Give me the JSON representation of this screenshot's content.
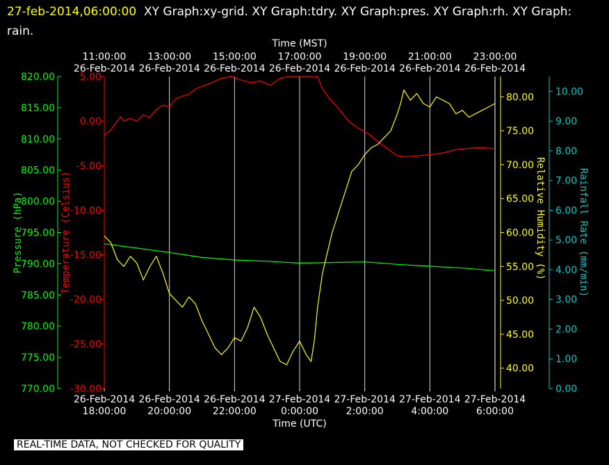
{
  "header": {
    "timestamp": "27-feb-2014,06:00:00",
    "graphs_text": "XY Graph:xy-grid.  XY Graph:tdry.  XY Graph:pres.  XY Graph:rh.  XY Graph: rain."
  },
  "notice": "REAL-TIME DATA, NOT CHECKED FOR QUALITY",
  "colors": {
    "temperature": "#ff0000",
    "pressure": "#00ff00",
    "humidity": "#ffff00",
    "rain": "#00cccc",
    "grid": "#ffffff"
  },
  "chart_data": {
    "type": "line",
    "top_axis": {
      "label": "Time (MST)",
      "ticks": [
        {
          "time": "11:00:00",
          "date": "26-Feb-2014"
        },
        {
          "time": "13:00:00",
          "date": "26-Feb-2014"
        },
        {
          "time": "15:00:00",
          "date": "26-Feb-2014"
        },
        {
          "time": "17:00:00",
          "date": "26-Feb-2014"
        },
        {
          "time": "19:00:00",
          "date": "26-Feb-2014"
        },
        {
          "time": "21:00:00",
          "date": "26-Feb-2014"
        },
        {
          "time": "23:00:00",
          "date": "26-Feb-2014"
        }
      ]
    },
    "bottom_axis": {
      "label": "Time (UTC)",
      "ticks": [
        {
          "date": "26-Feb-2014",
          "time": "18:00:00"
        },
        {
          "date": "26-Feb-2014",
          "time": "20:00:00"
        },
        {
          "date": "26-Feb-2014",
          "time": "22:00:00"
        },
        {
          "date": "27-Feb-2014",
          "time": "0:00:00"
        },
        {
          "date": "27-Feb-2014",
          "time": "2:00:00"
        },
        {
          "date": "27-Feb-2014",
          "time": "4:00:00"
        },
        {
          "date": "27-Feb-2014",
          "time": "6:00:00"
        }
      ]
    },
    "x_range_utc_hours": [
      18,
      30
    ],
    "axes": {
      "pressure": {
        "label": "Pressure (hPa)",
        "range": [
          770,
          820
        ],
        "ticks": [
          "770.00",
          "775.00",
          "780.00",
          "785.00",
          "790.00",
          "795.00",
          "800.00",
          "805.00",
          "810.00",
          "815.00",
          "820.00"
        ]
      },
      "temperature": {
        "label": "Temperature (Celsius)",
        "range": [
          -30,
          5
        ],
        "ticks": [
          "-30.00",
          "-25.00",
          "-20.00",
          "-15.00",
          "-10.00",
          "-5.00",
          "0.00",
          "5.00"
        ]
      },
      "humidity": {
        "label": "Relative Humidity (%)",
        "range": [
          37,
          83
        ],
        "ticks": [
          "40.00",
          "45.00",
          "50.00",
          "55.00",
          "60.00",
          "65.00",
          "70.00",
          "75.00",
          "80.00"
        ]
      },
      "rain": {
        "label": "Rainfall Rate (mm/min)",
        "range": [
          0,
          10.5
        ],
        "ticks": [
          "0.00",
          "1.00",
          "2.00",
          "3.00",
          "4.00",
          "5.00",
          "6.00",
          "7.00",
          "8.00",
          "9.00",
          "10.00"
        ]
      }
    },
    "series": [
      {
        "name": "tdry",
        "axis": "temperature",
        "x": [
          18.0,
          18.2,
          18.4,
          18.5,
          18.6,
          18.8,
          19.0,
          19.2,
          19.4,
          19.6,
          19.8,
          20.0,
          20.2,
          20.4,
          20.6,
          20.8,
          21.0,
          21.3,
          21.6,
          21.9,
          22.2,
          22.5,
          22.8,
          23.1,
          23.4,
          23.7,
          24.0,
          24.3,
          24.45,
          24.55,
          24.7,
          24.9,
          25.2,
          25.5,
          25.8,
          26.1,
          26.4,
          26.7,
          27.0,
          27.3,
          27.6,
          27.9,
          28.2,
          28.5,
          28.8,
          29.1,
          29.4,
          29.7,
          30.0
        ],
        "y": [
          -1.6,
          -1.0,
          0.0,
          0.5,
          0.0,
          0.3,
          0.0,
          0.7,
          0.4,
          1.3,
          1.8,
          1.6,
          2.5,
          2.8,
          3.0,
          3.6,
          3.9,
          4.3,
          4.8,
          5.2,
          4.6,
          4.3,
          4.5,
          4.0,
          4.8,
          5.3,
          5.1,
          5.0,
          4.9,
          5.4,
          3.6,
          2.6,
          1.4,
          0.0,
          -0.8,
          -1.4,
          -2.3,
          -3.1,
          -3.9,
          -4.0,
          -3.9,
          -3.8,
          -3.7,
          -3.5,
          -3.2,
          -3.1,
          -3.0,
          -3.0,
          -3.1
        ]
      },
      {
        "name": "pres",
        "axis": "pressure",
        "x": [
          18.0,
          19.0,
          20.0,
          21.0,
          22.0,
          23.0,
          24.0,
          25.0,
          26.0,
          27.0,
          28.0,
          29.0,
          30.0
        ],
        "y": [
          793.2,
          792.5,
          791.8,
          791.0,
          790.6,
          790.4,
          790.1,
          790.2,
          790.3,
          789.9,
          789.6,
          789.3,
          788.9
        ]
      },
      {
        "name": "rh",
        "axis": "humidity",
        "x": [
          18.0,
          18.2,
          18.4,
          18.6,
          18.8,
          19.0,
          19.2,
          19.4,
          19.6,
          19.8,
          20.0,
          20.2,
          20.4,
          20.6,
          20.8,
          21.0,
          21.2,
          21.4,
          21.6,
          21.8,
          22.0,
          22.2,
          22.4,
          22.6,
          22.8,
          23.0,
          23.2,
          23.4,
          23.6,
          23.8,
          24.0,
          24.2,
          24.35,
          24.45,
          24.55,
          24.7,
          24.85,
          25.0,
          25.2,
          25.4,
          25.6,
          25.8,
          26.0,
          26.2,
          26.4,
          26.6,
          26.8,
          27.0,
          27.1,
          27.2,
          27.4,
          27.6,
          27.8,
          28.0,
          28.2,
          28.4,
          28.6,
          28.8,
          29.0,
          29.2,
          29.4,
          29.6,
          29.8,
          30.0
        ],
        "y": [
          59.5,
          58.5,
          56.0,
          55.0,
          56.5,
          55.5,
          53.0,
          55.0,
          56.5,
          54.0,
          51.0,
          50.0,
          49.0,
          50.5,
          49.5,
          47.0,
          45.0,
          43.0,
          42.0,
          43.0,
          44.5,
          44.0,
          46.0,
          49.0,
          47.5,
          45.0,
          43.0,
          41.0,
          40.5,
          42.5,
          44.0,
          42.0,
          41.0,
          44.0,
          49.0,
          54.0,
          57.0,
          60.0,
          63.0,
          66.0,
          69.0,
          70.0,
          71.5,
          72.5,
          73.0,
          74.0,
          75.0,
          77.5,
          79.0,
          81.0,
          79.5,
          80.5,
          79.0,
          78.5,
          80.0,
          79.5,
          79.0,
          77.5,
          78.0,
          77.0,
          77.5,
          78.0,
          78.5,
          79.0
        ]
      },
      {
        "name": "rain",
        "axis": "rain",
        "x": [],
        "y": []
      }
    ]
  }
}
